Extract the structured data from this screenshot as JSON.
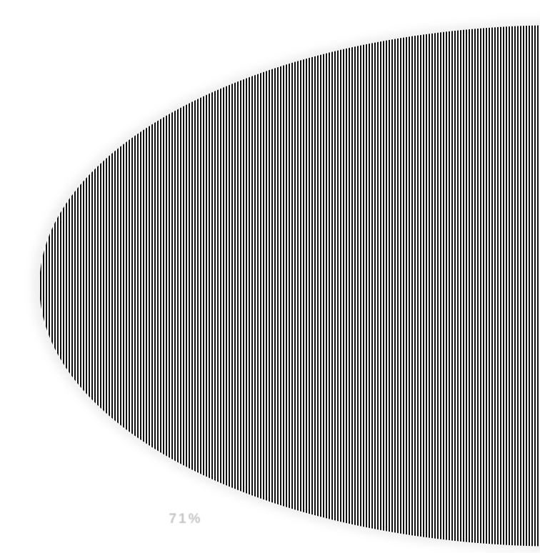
{
  "scene": {
    "shape": "striped-half-ellipse",
    "stripe_color": "#111111",
    "background_color": "#ffffff"
  },
  "caption": {
    "line1": "",
    "line2": "71%"
  }
}
